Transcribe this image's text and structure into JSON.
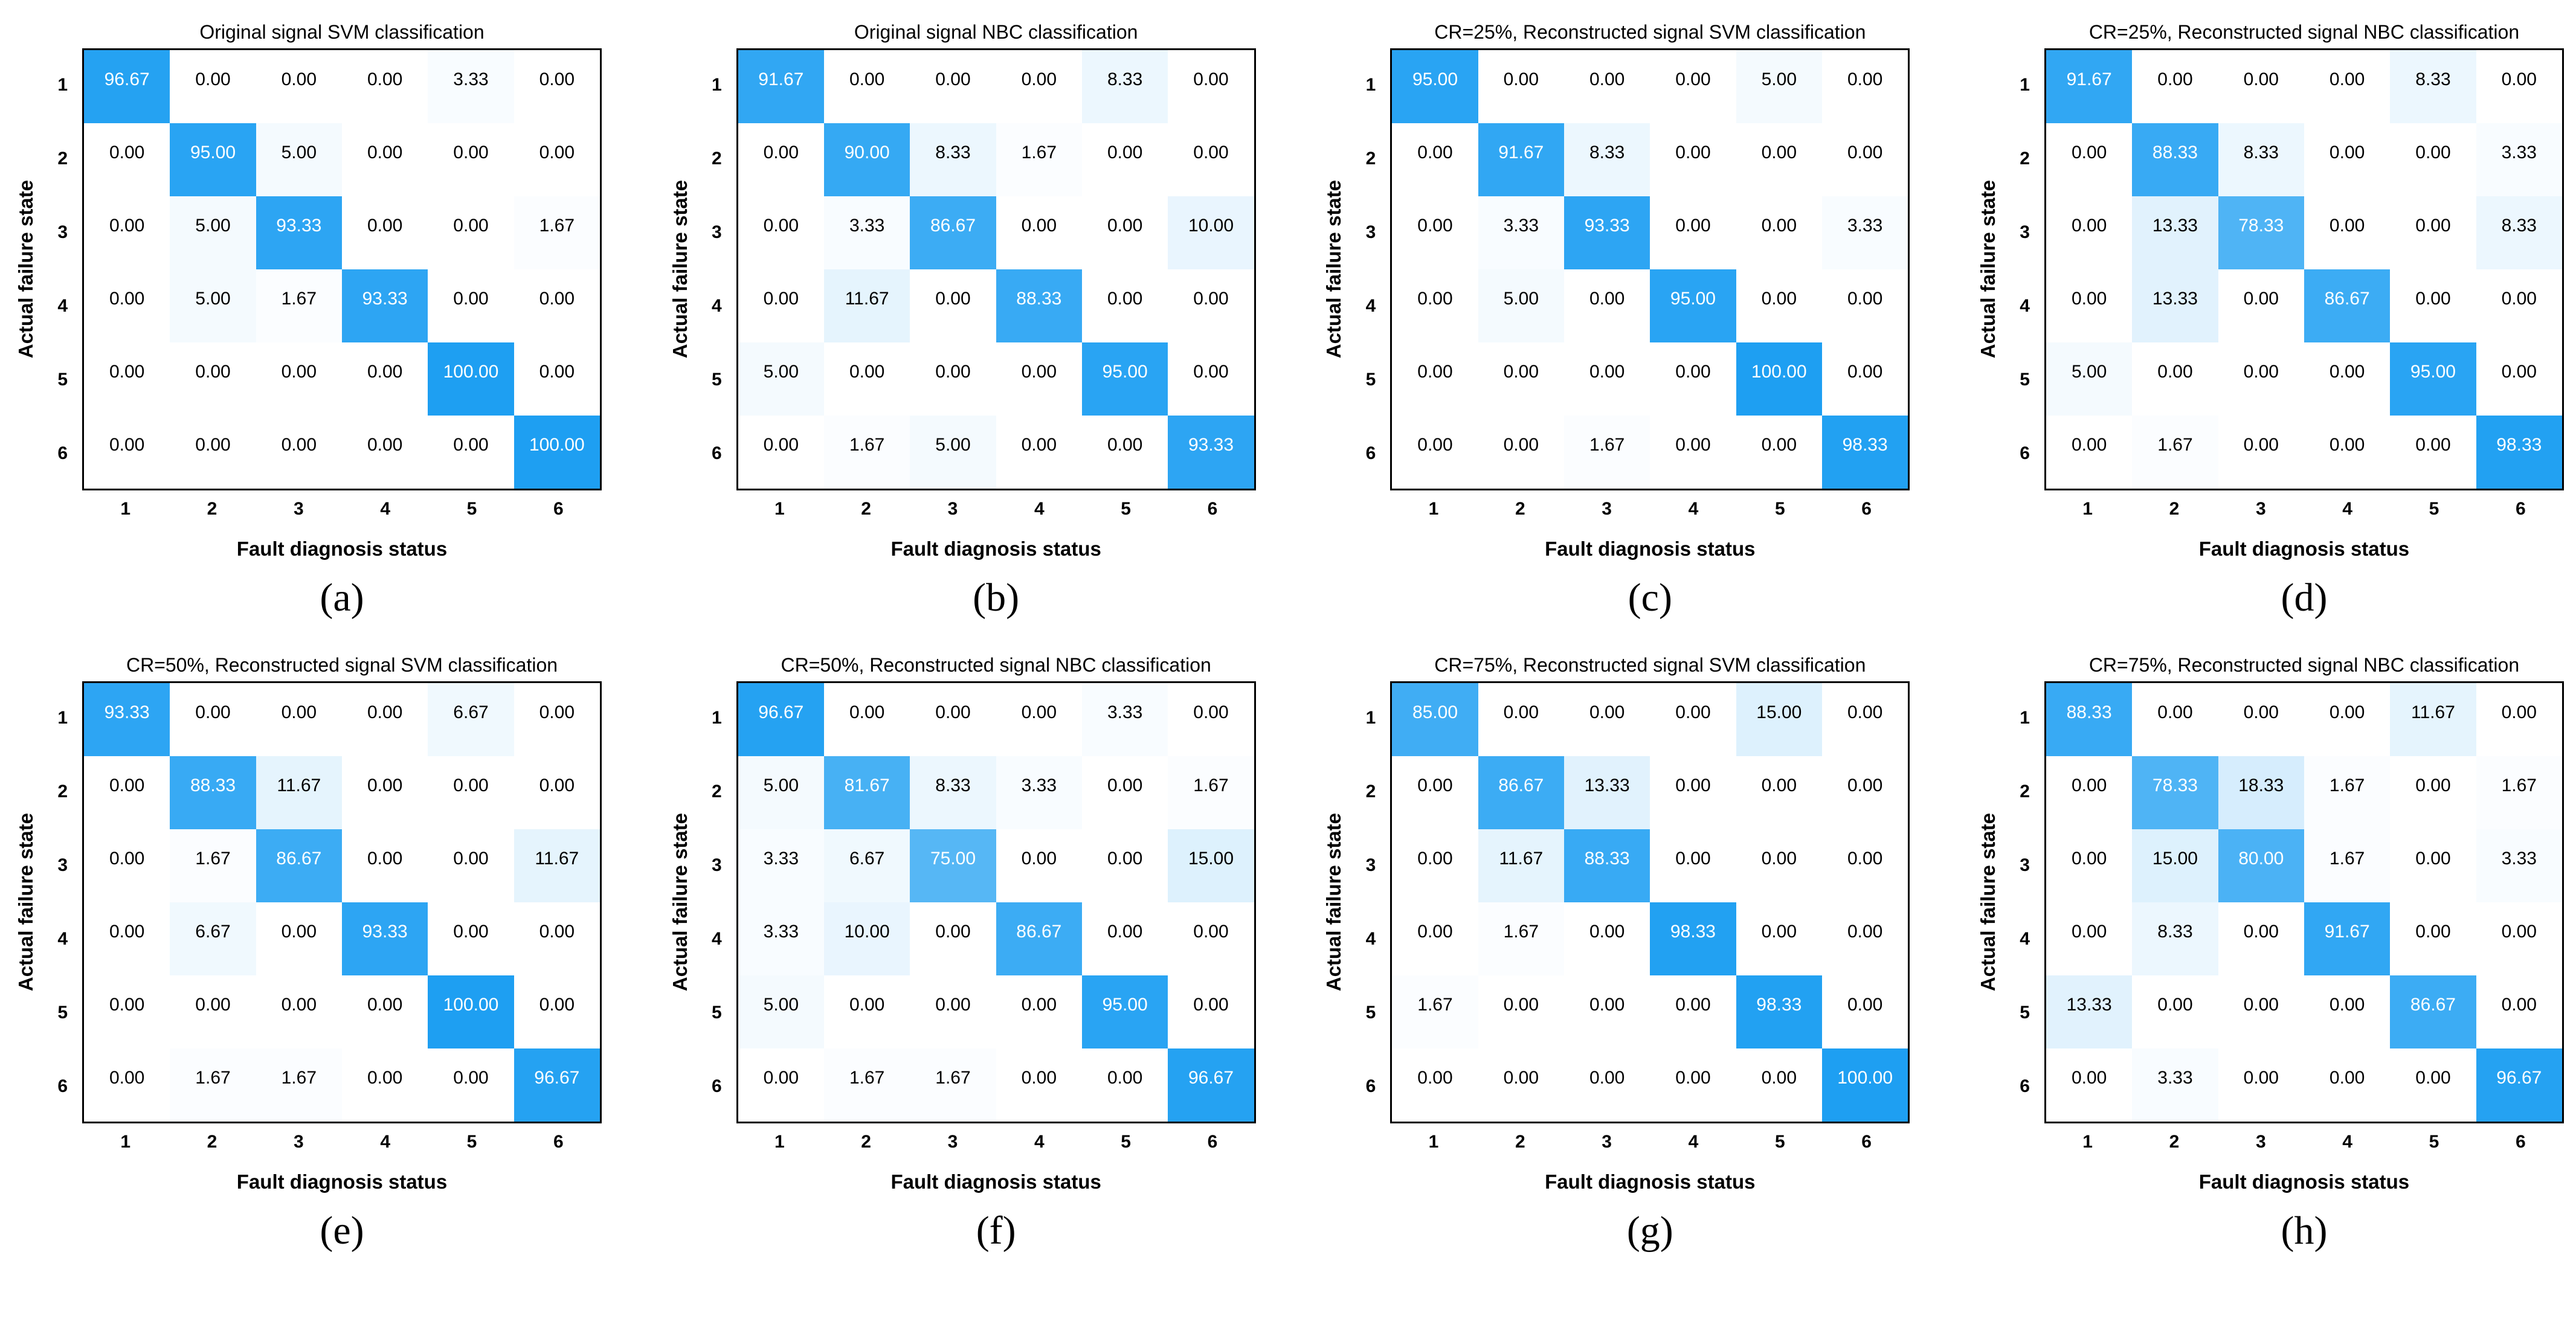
{
  "page": {
    "background": "#ffffff"
  },
  "colors": {
    "cell_low": "#ffffff",
    "cell_high": "#1e9ff2",
    "text_dark": "#000000",
    "text_light": "#ffffff",
    "box_border": "#000000",
    "white_text_threshold": 50
  },
  "axes": {
    "x_label": "Fault diagnosis status",
    "y_label": "Actual failure state",
    "tick_labels": [
      "1",
      "2",
      "3",
      "4",
      "5",
      "6"
    ]
  },
  "chart_data": [
    {
      "type": "heatmap",
      "panel": "a",
      "title": "Original signal SVM classification",
      "caption": "(a)",
      "xlabel": "Fault diagnosis status",
      "ylabel": "Actual failure state",
      "x": [
        "1",
        "2",
        "3",
        "4",
        "5",
        "6"
      ],
      "y": [
        "1",
        "2",
        "3",
        "4",
        "5",
        "6"
      ],
      "value_range": [
        0,
        100
      ],
      "values": [
        [
          96.67,
          0.0,
          0.0,
          0.0,
          3.33,
          0.0
        ],
        [
          0.0,
          95.0,
          5.0,
          0.0,
          0.0,
          0.0
        ],
        [
          0.0,
          5.0,
          93.33,
          0.0,
          0.0,
          1.67
        ],
        [
          0.0,
          5.0,
          1.67,
          93.33,
          0.0,
          0.0
        ],
        [
          0.0,
          0.0,
          0.0,
          0.0,
          100.0,
          0.0
        ],
        [
          0.0,
          0.0,
          0.0,
          0.0,
          0.0,
          100.0
        ]
      ]
    },
    {
      "type": "heatmap",
      "panel": "b",
      "title": "Original signal NBC classification",
      "caption": "(b)",
      "xlabel": "Fault diagnosis status",
      "ylabel": "Actual failure state",
      "x": [
        "1",
        "2",
        "3",
        "4",
        "5",
        "6"
      ],
      "y": [
        "1",
        "2",
        "3",
        "4",
        "5",
        "6"
      ],
      "value_range": [
        0,
        100
      ],
      "values": [
        [
          91.67,
          0.0,
          0.0,
          0.0,
          8.33,
          0.0
        ],
        [
          0.0,
          90.0,
          8.33,
          1.67,
          0.0,
          0.0
        ],
        [
          0.0,
          3.33,
          86.67,
          0.0,
          0.0,
          10.0
        ],
        [
          0.0,
          11.67,
          0.0,
          88.33,
          0.0,
          0.0
        ],
        [
          5.0,
          0.0,
          0.0,
          0.0,
          95.0,
          0.0
        ],
        [
          0.0,
          1.67,
          5.0,
          0.0,
          0.0,
          93.33
        ]
      ]
    },
    {
      "type": "heatmap",
      "panel": "c",
      "title": "CR=25%, Reconstructed signal SVM classification",
      "caption": "(c)",
      "xlabel": "Fault diagnosis status",
      "ylabel": "Actual failure state",
      "x": [
        "1",
        "2",
        "3",
        "4",
        "5",
        "6"
      ],
      "y": [
        "1",
        "2",
        "3",
        "4",
        "5",
        "6"
      ],
      "value_range": [
        0,
        100
      ],
      "values": [
        [
          95.0,
          0.0,
          0.0,
          0.0,
          5.0,
          0.0
        ],
        [
          0.0,
          91.67,
          8.33,
          0.0,
          0.0,
          0.0
        ],
        [
          0.0,
          3.33,
          93.33,
          0.0,
          0.0,
          3.33
        ],
        [
          0.0,
          5.0,
          0.0,
          95.0,
          0.0,
          0.0
        ],
        [
          0.0,
          0.0,
          0.0,
          0.0,
          100.0,
          0.0
        ],
        [
          0.0,
          0.0,
          1.67,
          0.0,
          0.0,
          98.33
        ]
      ]
    },
    {
      "type": "heatmap",
      "panel": "d",
      "title": "CR=25%, Reconstructed signal NBC classification",
      "caption": "(d)",
      "xlabel": "Fault diagnosis status",
      "ylabel": "Actual failure state",
      "x": [
        "1",
        "2",
        "3",
        "4",
        "5",
        "6"
      ],
      "y": [
        "1",
        "2",
        "3",
        "4",
        "5",
        "6"
      ],
      "value_range": [
        0,
        100
      ],
      "values": [
        [
          91.67,
          0.0,
          0.0,
          0.0,
          8.33,
          0.0
        ],
        [
          0.0,
          88.33,
          8.33,
          0.0,
          0.0,
          3.33
        ],
        [
          0.0,
          13.33,
          78.33,
          0.0,
          0.0,
          8.33
        ],
        [
          0.0,
          13.33,
          0.0,
          86.67,
          0.0,
          0.0
        ],
        [
          5.0,
          0.0,
          0.0,
          0.0,
          95.0,
          0.0
        ],
        [
          0.0,
          1.67,
          0.0,
          0.0,
          0.0,
          98.33
        ]
      ]
    },
    {
      "type": "heatmap",
      "panel": "e",
      "title": "CR=50%, Reconstructed signal SVM classification",
      "caption": "(e)",
      "xlabel": "Fault diagnosis status",
      "ylabel": "Actual failure state",
      "x": [
        "1",
        "2",
        "3",
        "4",
        "5",
        "6"
      ],
      "y": [
        "1",
        "2",
        "3",
        "4",
        "5",
        "6"
      ],
      "value_range": [
        0,
        100
      ],
      "values": [
        [
          93.33,
          0.0,
          0.0,
          0.0,
          6.67,
          0.0
        ],
        [
          0.0,
          88.33,
          11.67,
          0.0,
          0.0,
          0.0
        ],
        [
          0.0,
          1.67,
          86.67,
          0.0,
          0.0,
          11.67
        ],
        [
          0.0,
          6.67,
          0.0,
          93.33,
          0.0,
          0.0
        ],
        [
          0.0,
          0.0,
          0.0,
          0.0,
          100.0,
          0.0
        ],
        [
          0.0,
          1.67,
          1.67,
          0.0,
          0.0,
          96.67
        ]
      ]
    },
    {
      "type": "heatmap",
      "panel": "f",
      "title": "CR=50%, Reconstructed signal NBC classification",
      "caption": "(f)",
      "xlabel": "Fault diagnosis status",
      "ylabel": "Actual failure state",
      "x": [
        "1",
        "2",
        "3",
        "4",
        "5",
        "6"
      ],
      "y": [
        "1",
        "2",
        "3",
        "4",
        "5",
        "6"
      ],
      "value_range": [
        0,
        100
      ],
      "values": [
        [
          96.67,
          0.0,
          0.0,
          0.0,
          3.33,
          0.0
        ],
        [
          5.0,
          81.67,
          8.33,
          3.33,
          0.0,
          1.67
        ],
        [
          3.33,
          6.67,
          75.0,
          0.0,
          0.0,
          15.0
        ],
        [
          3.33,
          10.0,
          0.0,
          86.67,
          0.0,
          0.0
        ],
        [
          5.0,
          0.0,
          0.0,
          0.0,
          95.0,
          0.0
        ],
        [
          0.0,
          1.67,
          1.67,
          0.0,
          0.0,
          96.67
        ]
      ]
    },
    {
      "type": "heatmap",
      "panel": "g",
      "title": "CR=75%, Reconstructed signal SVM classification",
      "caption": "(g)",
      "xlabel": "Fault diagnosis status",
      "ylabel": "Actual failure state",
      "x": [
        "1",
        "2",
        "3",
        "4",
        "5",
        "6"
      ],
      "y": [
        "1",
        "2",
        "3",
        "4",
        "5",
        "6"
      ],
      "value_range": [
        0,
        100
      ],
      "values": [
        [
          85.0,
          0.0,
          0.0,
          0.0,
          15.0,
          0.0
        ],
        [
          0.0,
          86.67,
          13.33,
          0.0,
          0.0,
          0.0
        ],
        [
          0.0,
          11.67,
          88.33,
          0.0,
          0.0,
          0.0
        ],
        [
          0.0,
          1.67,
          0.0,
          98.33,
          0.0,
          0.0
        ],
        [
          1.67,
          0.0,
          0.0,
          0.0,
          98.33,
          0.0
        ],
        [
          0.0,
          0.0,
          0.0,
          0.0,
          0.0,
          100.0
        ]
      ]
    },
    {
      "type": "heatmap",
      "panel": "h",
      "title": "CR=75%, Reconstructed signal NBC classification",
      "caption": "(h)",
      "xlabel": "Fault diagnosis status",
      "ylabel": "Actual failure state",
      "x": [
        "1",
        "2",
        "3",
        "4",
        "5",
        "6"
      ],
      "y": [
        "1",
        "2",
        "3",
        "4",
        "5",
        "6"
      ],
      "value_range": [
        0,
        100
      ],
      "values": [
        [
          88.33,
          0.0,
          0.0,
          0.0,
          11.67,
          0.0
        ],
        [
          0.0,
          78.33,
          18.33,
          1.67,
          0.0,
          1.67
        ],
        [
          0.0,
          15.0,
          80.0,
          1.67,
          0.0,
          3.33
        ],
        [
          0.0,
          8.33,
          0.0,
          91.67,
          0.0,
          0.0
        ],
        [
          13.33,
          0.0,
          0.0,
          0.0,
          86.67,
          0.0
        ],
        [
          0.0,
          3.33,
          0.0,
          0.0,
          0.0,
          96.67
        ]
      ]
    }
  ]
}
